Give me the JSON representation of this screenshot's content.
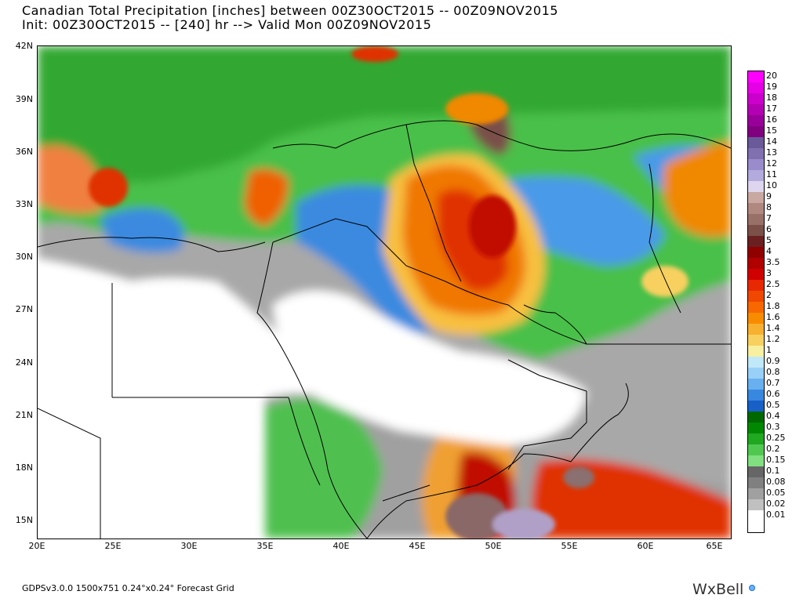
{
  "title_line1": "Canadian Total Precipitation [inches] between 00Z30OCT2015 -- 00Z09NOV2015",
  "title_line2": "Init: 00Z30OCT2015 -- [240] hr --> Valid Mon 00Z09NOV2015",
  "footer": "GDPSv3.0.0 1500x751 0.24°x0.24° Forecast Grid",
  "brand": "WxBell",
  "y_axis_labels": [
    "42N",
    "39N",
    "36N",
    "33N",
    "30N",
    "27N",
    "24N",
    "21N",
    "18N",
    "15N"
  ],
  "x_axis_labels": [
    "20E",
    "25E",
    "30E",
    "35E",
    "40E",
    "45E",
    "50E",
    "55E",
    "60E",
    "65E"
  ],
  "legend": [
    {
      "label": "20",
      "color": "#ff00ff"
    },
    {
      "label": "19",
      "color": "#e600e6"
    },
    {
      "label": "18",
      "color": "#cc00cc"
    },
    {
      "label": "17",
      "color": "#b300b3"
    },
    {
      "label": "16",
      "color": "#990099"
    },
    {
      "label": "15",
      "color": "#800080"
    },
    {
      "label": "14",
      "color": "#6a5a9a"
    },
    {
      "label": "13",
      "color": "#8070b0"
    },
    {
      "label": "12",
      "color": "#9a8ccc"
    },
    {
      "label": "11",
      "color": "#b3aadd"
    },
    {
      "label": "10",
      "color": "#ded6ee"
    },
    {
      "label": "9",
      "color": "#c8a8a0"
    },
    {
      "label": "8",
      "color": "#b08880"
    },
    {
      "label": "7",
      "color": "#987068"
    },
    {
      "label": "6",
      "color": "#7a5048"
    },
    {
      "label": "5",
      "color": "#6a2020"
    },
    {
      "label": "4",
      "color": "#900000"
    },
    {
      "label": "3.5",
      "color": "#b00000"
    },
    {
      "label": "3",
      "color": "#d00000"
    },
    {
      "label": "2.5",
      "color": "#e82800"
    },
    {
      "label": "2",
      "color": "#f04800"
    },
    {
      "label": "1.8",
      "color": "#f86800"
    },
    {
      "label": "1.6",
      "color": "#f88c00"
    },
    {
      "label": "1.4",
      "color": "#f8b030"
    },
    {
      "label": "1.2",
      "color": "#f8d060"
    },
    {
      "label": "1",
      "color": "#f8f0a0"
    },
    {
      "label": "0.9",
      "color": "#c0e8f8"
    },
    {
      "label": "0.8",
      "color": "#98d0f8"
    },
    {
      "label": "0.7",
      "color": "#68b0f0"
    },
    {
      "label": "0.6",
      "color": "#3888e0"
    },
    {
      "label": "0.5",
      "color": "#1860c8"
    },
    {
      "label": "0.4",
      "color": "#006800"
    },
    {
      "label": "0.3",
      "color": "#008800"
    },
    {
      "label": "0.25",
      "color": "#20a820"
    },
    {
      "label": "0.2",
      "color": "#50c850"
    },
    {
      "label": "0.15",
      "color": "#80e080"
    },
    {
      "label": "0.1",
      "color": "#666666"
    },
    {
      "label": "0.08",
      "color": "#808080"
    },
    {
      "label": "0.05",
      "color": "#a0a0a0"
    },
    {
      "label": "0.02",
      "color": "#c0c0c0"
    },
    {
      "label": "0.01",
      "color": "#ffffff"
    }
  ]
}
